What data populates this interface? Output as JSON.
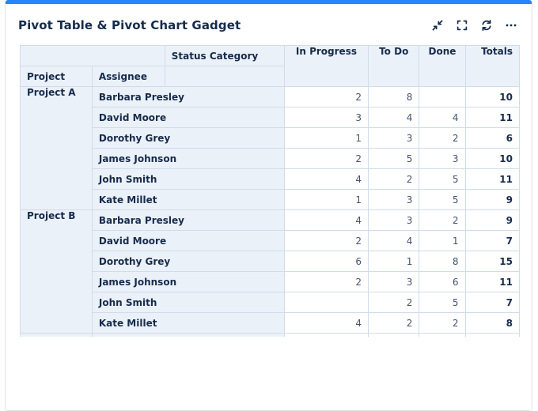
{
  "accent_color": "#2684FF",
  "icon_color": "#172B4D",
  "gadget": {
    "title": "Pivot Table & Pivot Chart Gadget",
    "toolbar": {
      "collapse": "collapse",
      "fullscreen": "fullscreen",
      "refresh": "refresh",
      "more": "more options"
    }
  },
  "pivot_table": {
    "corner_header": "Status Category",
    "row_headers": {
      "project": "Project",
      "assignee": "Assignee"
    },
    "column_headers": {
      "in_progress": "In Progress",
      "to_do": "To Do",
      "done": "Done",
      "totals": "Totals"
    },
    "groups": [
      {
        "project": "Project A",
        "rows": [
          {
            "assignee": "Barbara Presley",
            "in_progress": "2",
            "to_do": "8",
            "done": "",
            "totals": "10"
          },
          {
            "assignee": "David Moore",
            "in_progress": "3",
            "to_do": "4",
            "done": "4",
            "totals": "11"
          },
          {
            "assignee": "Dorothy Grey",
            "in_progress": "1",
            "to_do": "3",
            "done": "2",
            "totals": "6"
          },
          {
            "assignee": "James Johnson",
            "in_progress": "2",
            "to_do": "5",
            "done": "3",
            "totals": "10"
          },
          {
            "assignee": "John Smith",
            "in_progress": "4",
            "to_do": "2",
            "done": "5",
            "totals": "11"
          },
          {
            "assignee": "Kate Millet",
            "in_progress": "1",
            "to_do": "3",
            "done": "5",
            "totals": "9"
          }
        ]
      },
      {
        "project": "Project B",
        "rows": [
          {
            "assignee": "Barbara Presley",
            "in_progress": "4",
            "to_do": "3",
            "done": "2",
            "totals": "9"
          },
          {
            "assignee": "David Moore",
            "in_progress": "2",
            "to_do": "4",
            "done": "1",
            "totals": "7"
          },
          {
            "assignee": "Dorothy Grey",
            "in_progress": "6",
            "to_do": "1",
            "done": "8",
            "totals": "15"
          },
          {
            "assignee": "James Johnson",
            "in_progress": "2",
            "to_do": "3",
            "done": "6",
            "totals": "11"
          },
          {
            "assignee": "John Smith",
            "in_progress": "",
            "to_do": "2",
            "done": "5",
            "totals": "7"
          },
          {
            "assignee": "Kate Millet",
            "in_progress": "4",
            "to_do": "2",
            "done": "2",
            "totals": "8"
          }
        ]
      }
    ],
    "clipped_next_row": true
  }
}
